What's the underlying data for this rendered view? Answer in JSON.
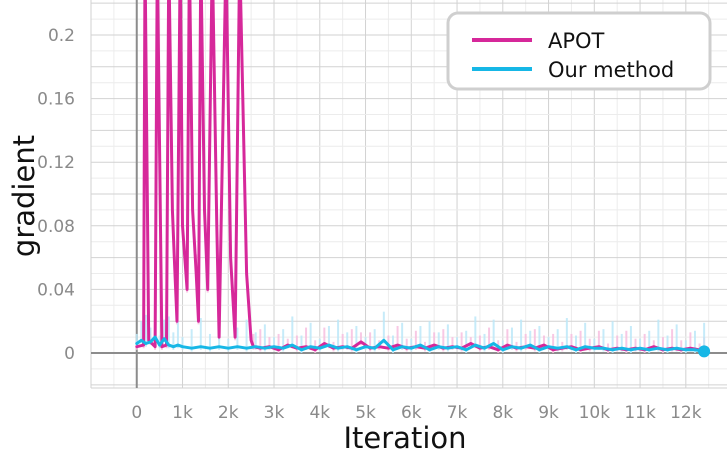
{
  "chart_data": {
    "type": "line",
    "xlabel": "Iteration",
    "ylabel": "gradient",
    "xlim": [
      -1000,
      12900
    ],
    "ylim": [
      -0.022,
      0.222
    ],
    "x_ticks": [
      {
        "value": 0,
        "label": "0"
      },
      {
        "value": 1000,
        "label": "1k"
      },
      {
        "value": 2000,
        "label": "2k"
      },
      {
        "value": 3000,
        "label": "3k"
      },
      {
        "value": 4000,
        "label": "4k"
      },
      {
        "value": 5000,
        "label": "5k"
      },
      {
        "value": 6000,
        "label": "6k"
      },
      {
        "value": 7000,
        "label": "7k"
      },
      {
        "value": 8000,
        "label": "8k"
      },
      {
        "value": 9000,
        "label": "9k"
      },
      {
        "value": 10000,
        "label": "10k"
      },
      {
        "value": 11000,
        "label": "11k"
      },
      {
        "value": 12000,
        "label": "12k"
      }
    ],
    "y_ticks": [
      {
        "value": 0,
        "label": "0"
      },
      {
        "value": 0.04,
        "label": "0.04"
      },
      {
        "value": 0.08,
        "label": "0.08"
      },
      {
        "value": 0.12,
        "label": "0.12"
      },
      {
        "value": 0.16,
        "label": "0.16"
      },
      {
        "value": 0.2,
        "label": "0.2"
      }
    ],
    "grid": true,
    "legend_position": "top-right",
    "series": [
      {
        "name": "APOT",
        "color": "#d6289a",
        "raw_color": "#f7bfe0",
        "x": [
          0,
          150,
          180,
          260,
          400,
          450,
          550,
          650,
          700,
          780,
          820,
          880,
          950,
          1000,
          1100,
          1150,
          1220,
          1300,
          1350,
          1400,
          1480,
          1550,
          1650,
          1750,
          1800,
          1950,
          2050,
          2150,
          2250,
          2400,
          2500,
          2550,
          2700,
          2900,
          3100,
          3300,
          3500,
          3700,
          3900,
          4100,
          4300,
          4500,
          4700,
          4900,
          5100,
          5300,
          5500,
          5700,
          5900,
          6100,
          6300,
          6500,
          6700,
          6900,
          7100,
          7300,
          7500,
          7700,
          7900,
          8100,
          8300,
          8500,
          8700,
          8900,
          9100,
          9300,
          9500,
          9700,
          9900,
          10100,
          10300,
          10500,
          10700,
          10900,
          11100,
          11300,
          11500,
          11700,
          11900,
          12100,
          12300,
          12400
        ],
        "y": [
          0.004,
          0.005,
          0.25,
          0.008,
          0.004,
          0.25,
          0.004,
          0.005,
          0.25,
          0.09,
          0.06,
          0.02,
          0.25,
          0.08,
          0.04,
          0.25,
          0.09,
          0.05,
          0.02,
          0.25,
          0.09,
          0.04,
          0.25,
          0.08,
          0.01,
          0.25,
          0.06,
          0.01,
          0.25,
          0.05,
          0.008,
          0.004,
          0.003,
          0.004,
          0.002,
          0.005,
          0.003,
          0.004,
          0.002,
          0.006,
          0.003,
          0.004,
          0.003,
          0.007,
          0.003,
          0.004,
          0.003,
          0.005,
          0.003,
          0.004,
          0.003,
          0.005,
          0.003,
          0.004,
          0.003,
          0.006,
          0.003,
          0.004,
          0.002,
          0.005,
          0.003,
          0.004,
          0.003,
          0.005,
          0.002,
          0.003,
          0.004,
          0.002,
          0.003,
          0.004,
          0.002,
          0.003,
          0.002,
          0.003,
          0.002,
          0.004,
          0.002,
          0.003,
          0.002,
          0.003,
          0.002,
          0.002
        ]
      },
      {
        "name": "Our method",
        "color": "#16b7e6",
        "raw_color": "#bde8f8",
        "x": [
          0,
          100,
          200,
          300,
          400,
          500,
          600,
          700,
          800,
          900,
          1000,
          1200,
          1400,
          1600,
          1800,
          2000,
          2200,
          2400,
          2600,
          2800,
          3000,
          3200,
          3400,
          3600,
          3800,
          4000,
          4200,
          4400,
          4600,
          4800,
          5000,
          5200,
          5400,
          5600,
          5800,
          6000,
          6200,
          6400,
          6600,
          6800,
          7000,
          7200,
          7400,
          7600,
          7800,
          8000,
          8200,
          8400,
          8600,
          8800,
          9000,
          9200,
          9400,
          9600,
          9800,
          10000,
          10200,
          10400,
          10600,
          10800,
          11000,
          11200,
          11400,
          11600,
          11800,
          12000,
          12200,
          12400
        ],
        "y": [
          0.006,
          0.008,
          0.006,
          0.007,
          0.01,
          0.005,
          0.009,
          0.005,
          0.004,
          0.005,
          0.004,
          0.003,
          0.004,
          0.003,
          0.004,
          0.003,
          0.004,
          0.003,
          0.004,
          0.003,
          0.004,
          0.003,
          0.005,
          0.002,
          0.004,
          0.003,
          0.005,
          0.003,
          0.004,
          0.002,
          0.004,
          0.003,
          0.008,
          0.002,
          0.004,
          0.003,
          0.005,
          0.002,
          0.004,
          0.003,
          0.004,
          0.002,
          0.005,
          0.003,
          0.006,
          0.002,
          0.004,
          0.003,
          0.005,
          0.002,
          0.004,
          0.003,
          0.004,
          0.002,
          0.004,
          0.003,
          0.003,
          0.002,
          0.003,
          0.002,
          0.003,
          0.002,
          0.003,
          0.002,
          0.003,
          0.002,
          0.002,
          0.001
        ]
      }
    ]
  }
}
